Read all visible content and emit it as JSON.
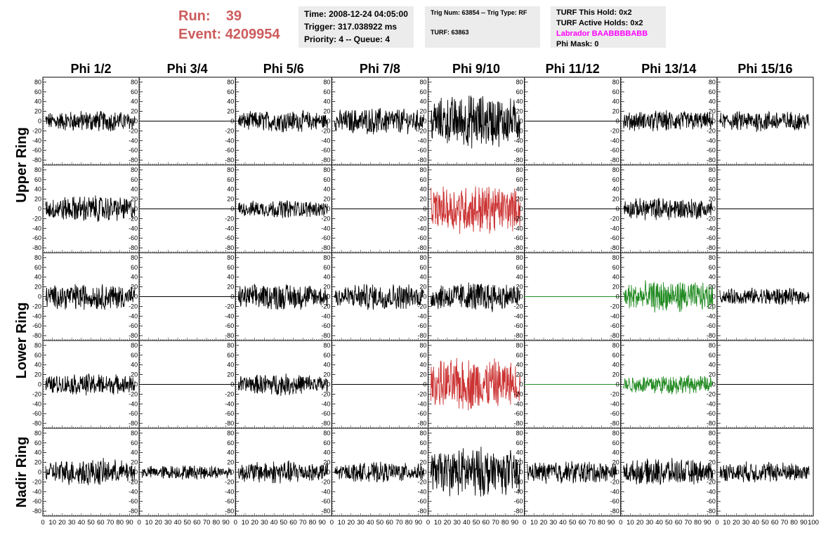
{
  "header": {
    "run_label": "Run:",
    "run_value": "39",
    "event_label": "Event:",
    "event_value": "4209954"
  },
  "info_time": {
    "time": "Time: 2008-12-24 04:05:00",
    "trigger": "Trigger: 317.038922 ms",
    "priority": "Priority: 4 -- Queue: 4"
  },
  "info_trig": {
    "trig": "Trig Num: 63854 -- Trig Type: RF",
    "turf": "TURF: 63863"
  },
  "info_turf": {
    "this_hold": "TURF This Hold: 0x2",
    "active_holds": "TURF Active Holds: 0x2",
    "labrador": "Labrador BAABBBBABB",
    "phi_mask": "Phi Mask: 0"
  },
  "colors": {
    "run_text": "#cd5c5c",
    "labrador_text": "#ff00ff",
    "trace_default": "#000000",
    "trace_red": "#cc3333",
    "trace_green": "#228b22"
  },
  "chart_data": {
    "type": "line",
    "columns": [
      "Phi 1/2",
      "Phi 3/4",
      "Phi 5/6",
      "Phi 7/8",
      "Phi 9/10",
      "Phi 11/12",
      "Phi 13/14",
      "Phi 15/16"
    ],
    "rows": [
      "Upper Ring",
      "Lower Ring",
      "Nadir Ring"
    ],
    "ylim": [
      -90,
      90
    ],
    "yticks": [
      "-80",
      "-60",
      "-40",
      "-20",
      "0",
      "20",
      "40",
      "60",
      "80"
    ],
    "xlim": [
      0,
      100
    ],
    "xtick_labels": [
      "0",
      "10",
      "20",
      "30",
      "40",
      "50",
      "60",
      "70",
      "80",
      "90",
      "100"
    ],
    "panels": [
      [
        {
          "mode": "wave",
          "amp": 12,
          "color": "default"
        },
        {
          "mode": "flat",
          "color": "default"
        },
        {
          "mode": "wave",
          "amp": 12,
          "color": "default"
        },
        {
          "mode": "wave",
          "amp": 15,
          "color": "default"
        },
        {
          "mode": "wave",
          "amp": 30,
          "color": "default"
        },
        {
          "mode": "flat",
          "color": "default"
        },
        {
          "mode": "wave",
          "amp": 12,
          "color": "default"
        },
        {
          "mode": "wave",
          "amp": 12,
          "color": "default"
        }
      ],
      [
        {
          "mode": "wave",
          "amp": 15,
          "color": "default"
        },
        {
          "mode": "flat",
          "color": "default"
        },
        {
          "mode": "wave",
          "amp": 10,
          "color": "default"
        },
        {
          "mode": "flat",
          "color": "default"
        },
        {
          "mode": "wave",
          "amp": 28,
          "color": "red"
        },
        {
          "mode": "flat",
          "color": "default"
        },
        {
          "mode": "wave",
          "amp": 13,
          "color": "default"
        },
        {
          "mode": "flat",
          "color": "default"
        }
      ],
      [
        {
          "mode": "wave",
          "amp": 15,
          "color": "default"
        },
        {
          "mode": "flat",
          "color": "default"
        },
        {
          "mode": "wave",
          "amp": 15,
          "color": "default"
        },
        {
          "mode": "wave",
          "amp": 15,
          "color": "default"
        },
        {
          "mode": "wave",
          "amp": 17,
          "color": "default"
        },
        {
          "mode": "flat",
          "color": "green"
        },
        {
          "mode": "wave",
          "amp": 18,
          "color": "green"
        },
        {
          "mode": "wave",
          "amp": 10,
          "color": "default"
        }
      ],
      [
        {
          "mode": "wave",
          "amp": 12,
          "color": "default"
        },
        {
          "mode": "flat",
          "color": "default"
        },
        {
          "mode": "wave",
          "amp": 12,
          "color": "default"
        },
        {
          "mode": "flat",
          "color": "default"
        },
        {
          "mode": "wave",
          "amp": 30,
          "color": "red"
        },
        {
          "mode": "flat",
          "color": "green"
        },
        {
          "mode": "wave",
          "amp": 11,
          "color": "green"
        },
        {
          "mode": "flat",
          "color": "default"
        }
      ],
      [
        {
          "mode": "wave",
          "amp": 15,
          "color": "default"
        },
        {
          "mode": "wave",
          "amp": 8,
          "color": "default"
        },
        {
          "mode": "wave",
          "amp": 13,
          "color": "default"
        },
        {
          "mode": "wave",
          "amp": 11,
          "color": "default"
        },
        {
          "mode": "wave",
          "amp": 28,
          "color": "default"
        },
        {
          "mode": "wave",
          "amp": 13,
          "color": "default"
        },
        {
          "mode": "wave",
          "amp": 15,
          "color": "default"
        },
        {
          "mode": "wave",
          "amp": 12,
          "color": "default"
        }
      ]
    ]
  }
}
